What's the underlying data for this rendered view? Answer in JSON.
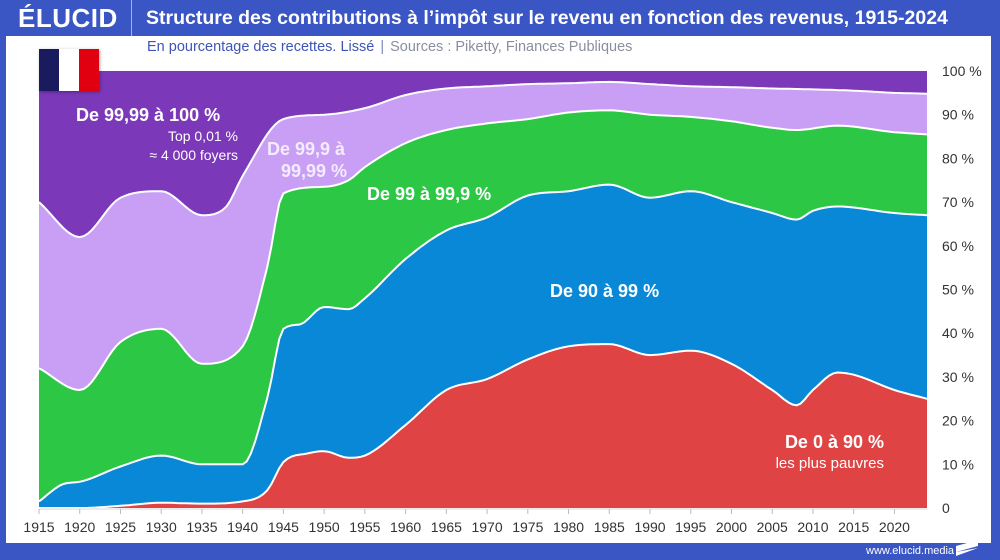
{
  "header": {
    "brand": "ÉLUCID",
    "title": "Structure des contributions à l’impôt sur le revenu en fonction des revenus, 1915-2024",
    "subtitle": "En pourcentage des recettes. Lissé",
    "subtitle_separator": "|",
    "sources": "Sources : Piketty, Finances Publiques"
  },
  "flag": {
    "name": "France",
    "colors": [
      "#1a1a5e",
      "#ffffff",
      "#e00010"
    ]
  },
  "footer": {
    "url": "www.elucid.media"
  },
  "labels": {
    "top001": {
      "title": "De 99,99 à 100 %",
      "line1": "Top 0,01 %",
      "line2": "≈ 4 000 foyers"
    },
    "p999": {
      "line1": "De 99,9 à",
      "line2": "99,99 %"
    },
    "p99": {
      "title": "De 99 à 99,9 %"
    },
    "p90": {
      "title": "De 90 à 99 %"
    },
    "p0": {
      "title": "De 0 à 90 %",
      "line1": "les plus pauvres"
    }
  },
  "chart_data": {
    "type": "area",
    "stacked": true,
    "smoothed": true,
    "title": "Structure des contributions à l’impôt sur le revenu en fonction des revenus, 1915-2024",
    "subtitle": "En pourcentage des recettes. Lissé",
    "xlabel": "",
    "ylabel": "",
    "xlim": [
      1915,
      2024
    ],
    "ylim": [
      0,
      100
    ],
    "y_axis_position": "right",
    "x_ticks": [
      "1915",
      "1920",
      "1925",
      "1930",
      "1935",
      "1940",
      "1945",
      "1950",
      "1955",
      "1960",
      "1965",
      "1970",
      "1975",
      "1980",
      "1985",
      "1990",
      "1995",
      "2000",
      "2005",
      "2010",
      "2015",
      "2020"
    ],
    "y_ticks": [
      "0",
      "10 %",
      "20 %",
      "30 %",
      "40 %",
      "50 %",
      "60 %",
      "70 %",
      "80 %",
      "90 %",
      "100 %"
    ],
    "note": "Values are cumulative upper boundaries (in % of receipts) of each stacked band, read from the chart.",
    "series": [
      {
        "name": "De 0 à 90 %",
        "color": "#e04344",
        "points": [
          [
            1915,
            0
          ],
          [
            1920,
            0
          ],
          [
            1925,
            0.5
          ],
          [
            1930,
            1.2
          ],
          [
            1935,
            1
          ],
          [
            1940,
            1.5
          ],
          [
            1943,
            4
          ],
          [
            1945,
            10.5
          ],
          [
            1948,
            12.5
          ],
          [
            1950,
            13
          ],
          [
            1953,
            11.5
          ],
          [
            1955,
            12
          ],
          [
            1960,
            19
          ],
          [
            1965,
            27
          ],
          [
            1970,
            29.5
          ],
          [
            1975,
            34
          ],
          [
            1980,
            37
          ],
          [
            1985,
            37.5
          ],
          [
            1990,
            35
          ],
          [
            1995,
            36
          ],
          [
            2000,
            33
          ],
          [
            2005,
            27
          ],
          [
            2008,
            23.5
          ],
          [
            2010,
            27
          ],
          [
            2013,
            31
          ],
          [
            2015,
            30.5
          ],
          [
            2020,
            27
          ],
          [
            2024,
            25
          ]
        ]
      },
      {
        "name": "De 90 à 99 %",
        "color": "#0a88d8",
        "points": [
          [
            1915,
            1.5
          ],
          [
            1918,
            5.5
          ],
          [
            1920,
            6
          ],
          [
            1925,
            9.5
          ],
          [
            1930,
            12
          ],
          [
            1935,
            10
          ],
          [
            1940,
            10
          ],
          [
            1943,
            25
          ],
          [
            1945,
            41
          ],
          [
            1947,
            42
          ],
          [
            1950,
            46
          ],
          [
            1953,
            45.5
          ],
          [
            1955,
            48
          ],
          [
            1960,
            57
          ],
          [
            1965,
            63.5
          ],
          [
            1970,
            66.5
          ],
          [
            1975,
            71.5
          ],
          [
            1980,
            72.5
          ],
          [
            1985,
            74
          ],
          [
            1990,
            71
          ],
          [
            1995,
            72.5
          ],
          [
            2000,
            70
          ],
          [
            2005,
            67.5
          ],
          [
            2008,
            66
          ],
          [
            2010,
            68
          ],
          [
            2013,
            69
          ],
          [
            2020,
            67.5
          ],
          [
            2024,
            67
          ]
        ]
      },
      {
        "name": "De 99 à 99,9 %",
        "color": "#2cc845",
        "points": [
          [
            1915,
            32
          ],
          [
            1920,
            27
          ],
          [
            1925,
            38
          ],
          [
            1930,
            41
          ],
          [
            1935,
            33
          ],
          [
            1940,
            37
          ],
          [
            1943,
            55
          ],
          [
            1945,
            72
          ],
          [
            1950,
            73.5
          ],
          [
            1953,
            75
          ],
          [
            1955,
            78
          ],
          [
            1960,
            83.5
          ],
          [
            1965,
            86.5
          ],
          [
            1970,
            88
          ],
          [
            1975,
            89
          ],
          [
            1980,
            90.5
          ],
          [
            1985,
            91
          ],
          [
            1990,
            90
          ],
          [
            1995,
            89.5
          ],
          [
            2000,
            88.5
          ],
          [
            2005,
            87
          ],
          [
            2008,
            86.5
          ],
          [
            2013,
            87.5
          ],
          [
            2020,
            86
          ],
          [
            2024,
            85.5
          ]
        ]
      },
      {
        "name": "De 99,9 à 99,99 %",
        "color": "#c99ff5",
        "points": [
          [
            1915,
            70
          ],
          [
            1920,
            62
          ],
          [
            1925,
            71
          ],
          [
            1930,
            72.5
          ],
          [
            1935,
            67
          ],
          [
            1938,
            69
          ],
          [
            1940,
            76
          ],
          [
            1945,
            89
          ],
          [
            1950,
            90
          ],
          [
            1955,
            91.5
          ],
          [
            1960,
            94.5
          ],
          [
            1965,
            96
          ],
          [
            1970,
            96.5
          ],
          [
            1975,
            97
          ],
          [
            1980,
            97.2
          ],
          [
            1985,
            97.5
          ],
          [
            1990,
            97
          ],
          [
            1995,
            96.5
          ],
          [
            2000,
            96.3
          ],
          [
            2005,
            96
          ],
          [
            2010,
            95.8
          ],
          [
            2015,
            95.5
          ],
          [
            2020,
            95
          ],
          [
            2024,
            94.8
          ]
        ]
      },
      {
        "name": "De 99,99 à 100 %",
        "color": "#7b38b8",
        "points": [
          [
            1915,
            100
          ],
          [
            2024,
            100
          ]
        ]
      }
    ]
  }
}
